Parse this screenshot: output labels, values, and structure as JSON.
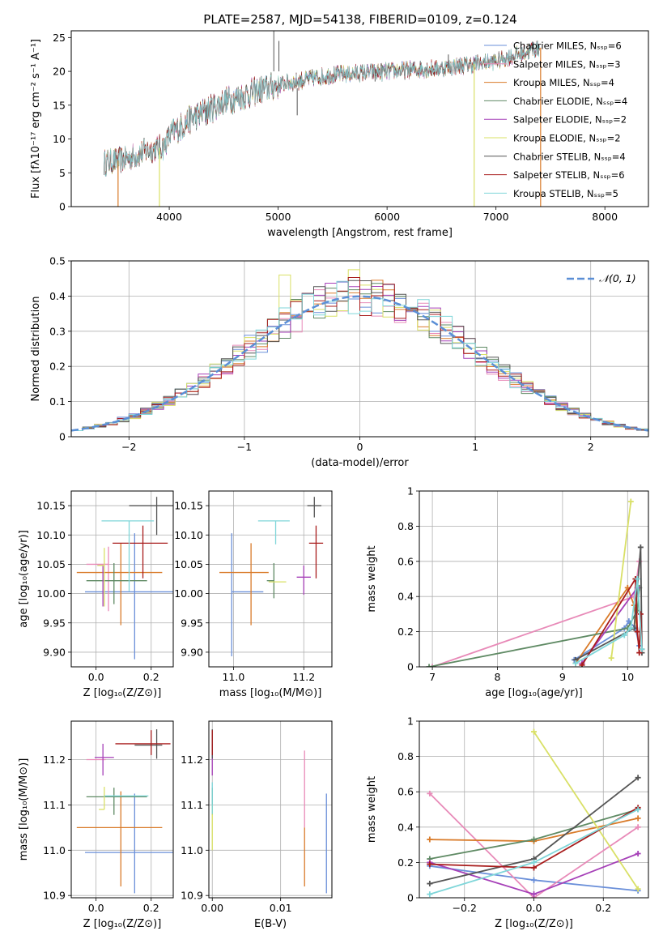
{
  "figure": {
    "title": "PLATE=2587, MJD=54138, FIBERID=0109, z=0.124"
  },
  "colors": {
    "Chabrier MILES": "#6a8fd9",
    "Salpeter MILES": "#e88ab8",
    "Kroupa MILES": "#d97b2a",
    "Chabrier ELODIE": "#5f8a64",
    "Salpeter ELODIE": "#a640b8",
    "Kroupa ELODIE": "#d9e066",
    "Chabrier STELIB": "#555555",
    "Salpeter STELIB": "#a81c1c",
    "Kroupa STELIB": "#7fd6d9"
  },
  "chart_data": [
    {
      "id": "spectrum",
      "type": "line",
      "title": "PLATE=2587, MJD=54138, FIBERID=0109, z=0.124",
      "xlabel": "wavelength [Angstrom, rest frame]",
      "ylabel": "Flux [fλ10⁻¹⁷ erg cm⁻² s⁻¹ A⁻¹]",
      "xlim": [
        3100,
        8400
      ],
      "ylim": [
        0,
        26
      ],
      "xticks": [
        4000,
        5000,
        6000,
        7000,
        8000
      ],
      "yticks": [
        0,
        5,
        10,
        15,
        20,
        25
      ],
      "legend_position": "top-right",
      "legend": [
        "Chabrier MILES, Nₛₛₚ=6",
        "Salpeter MILES, Nₛₛₚ=3",
        "Kroupa MILES, Nₛₛₚ=4",
        "Chabrier ELODIE, Nₛₛₚ=4",
        "Salpeter ELODIE, Nₛₛₚ=2",
        "Kroupa ELODIE, Nₛₛₚ=2",
        "Chabrier STELIB, Nₛₛₚ=4",
        "Salpeter STELIB, Nₛₛₚ=6",
        "Kroupa STELIB, Nₛₛₚ=5"
      ],
      "series_names": [
        "Chabrier MILES",
        "Salpeter MILES",
        "Kroupa MILES",
        "Chabrier ELODIE",
        "Salpeter ELODIE",
        "Kroupa ELODIE",
        "Chabrier STELIB",
        "Salpeter STELIB",
        "Kroupa STELIB"
      ],
      "continuum": {
        "x": [
          3400,
          3600,
          3800,
          3950,
          4000,
          4200,
          4500,
          4800,
          5000,
          5500,
          6000,
          6500,
          7000,
          7400
        ],
        "y": [
          6.5,
          7,
          8.3,
          8.8,
          10.5,
          13,
          15.5,
          17,
          18,
          19.5,
          20,
          20.5,
          21.5,
          23.5
        ]
      },
      "x_range": [
        3400,
        7400
      ],
      "gaps": [
        {
          "x": 3530,
          "series": "Kroupa MILES"
        },
        {
          "x": 3910,
          "series": "Kroupa ELODIE"
        },
        {
          "x": 6800,
          "series": "Kroupa ELODIE"
        },
        {
          "x": 7410,
          "series": "Kroupa MILES"
        }
      ]
    },
    {
      "id": "residuals",
      "type": "histogram",
      "xlabel": "(data-model)/error",
      "ylabel": "Normed distribution",
      "xlim": [
        -2.5,
        2.5
      ],
      "ylim": [
        0,
        0.5
      ],
      "xticks": [
        -2,
        -1,
        0,
        1,
        2
      ],
      "yticks": [
        0.0,
        0.1,
        0.2,
        0.3,
        0.4,
        0.5
      ],
      "grid": true,
      "legend": [
        "𝒩(0, 1)"
      ],
      "legend_position": "top-right",
      "bin_width": 0.1,
      "reference_curve": {
        "name": "𝒩(0, 1)",
        "mean": 0,
        "sigma": 1,
        "color": "#5b8fd6"
      }
    },
    {
      "id": "z-age",
      "type": "errorbar",
      "xlabel": "Z [log₁₀(Z/Z⊙)]",
      "ylabel": "age  [log₁₀(age/yr)]",
      "xlim": [
        -0.09,
        0.28
      ],
      "ylim": [
        9.875,
        10.175
      ],
      "xticks": [
        0.0,
        0.2
      ],
      "xticklabels": [
        "0.0",
        "0.2"
      ],
      "yticks": [
        9.9,
        9.95,
        10.0,
        10.05,
        10.1,
        10.15
      ],
      "yticklabels": [
        "9.90",
        "9.95",
        "10.00",
        "10.05",
        "10.10",
        "10.15"
      ],
      "grid": true,
      "points": [
        {
          "series": "Chabrier MILES",
          "x": 0.14,
          "y": 10.003,
          "xerr": [
            0.18,
            0.16
          ],
          "yerr": [
            0.115,
            0.1
          ]
        },
        {
          "series": "Salpeter MILES",
          "x": 0.045,
          "y": 10.05,
          "xerr": [
            0.08,
            0.0
          ],
          "yerr": [
            0.08,
            0.03
          ]
        },
        {
          "series": "Kroupa MILES",
          "x": 0.09,
          "y": 10.036,
          "xerr": [
            0.16,
            0.15
          ],
          "yerr": [
            0.09,
            0.05
          ]
        },
        {
          "series": "Chabrier ELODIE",
          "x": 0.065,
          "y": 10.022,
          "xerr": [
            0.1,
            0.12
          ],
          "yerr": [
            0.04,
            0.03
          ]
        },
        {
          "series": "Salpeter ELODIE",
          "x": 0.025,
          "y": 10.048,
          "xerr": [
            0.02,
            0.0
          ],
          "yerr": [
            0.07,
            0.0
          ]
        },
        {
          "series": "Kroupa ELODIE",
          "x": 0.03,
          "y": 10.048,
          "xerr": [
            0.025,
            0.0
          ],
          "yerr": [
            0.07,
            0.03
          ]
        },
        {
          "series": "Chabrier STELIB",
          "x": 0.22,
          "y": 10.15,
          "xerr": [
            0.1,
            0.08
          ],
          "yerr": [
            0.05,
            0.015
          ]
        },
        {
          "series": "Salpeter STELIB",
          "x": 0.17,
          "y": 10.086,
          "xerr": [
            0.11,
            0.09
          ],
          "yerr": [
            0.06,
            0.03
          ]
        },
        {
          "series": "Kroupa STELIB",
          "x": 0.12,
          "y": 10.124,
          "xerr": [
            0.1,
            0.09
          ],
          "yerr": [
            0.12,
            0.0
          ]
        }
      ]
    },
    {
      "id": "mass-age",
      "type": "errorbar",
      "xlabel": "mass [log₁₀(M/M⊙)]",
      "ylabel": "",
      "xlim": [
        10.93,
        11.28
      ],
      "ylim": [
        9.875,
        10.175
      ],
      "xticks": [
        11.0,
        11.2
      ],
      "xticklabels": [
        "11.0",
        "11.2"
      ],
      "yticks": [
        9.9,
        9.95,
        10.0,
        10.05,
        10.1,
        10.15
      ],
      "yticklabels": [
        "9.90",
        "9.95",
        "10.00",
        "10.05",
        "10.10",
        "10.15"
      ],
      "grid": true,
      "points": [
        {
          "series": "Chabrier MILES",
          "x": 10.995,
          "y": 10.003,
          "xerr": [
            0.0,
            0.09
          ],
          "yerr": [
            0.11,
            0.1
          ]
        },
        {
          "series": "Salpeter MILES",
          "x": 11.2,
          "y": 10.05,
          "xerr": [
            0.0,
            0.0
          ],
          "yerr": [
            0.0,
            0.0
          ]
        },
        {
          "series": "Kroupa MILES",
          "x": 11.05,
          "y": 10.036,
          "xerr": [
            0.09,
            0.05
          ],
          "yerr": [
            0.09,
            0.05
          ]
        },
        {
          "series": "Chabrier ELODIE",
          "x": 11.115,
          "y": 10.022,
          "xerr": [
            0.02,
            0.0
          ],
          "yerr": [
            0.03,
            0.03
          ]
        },
        {
          "series": "Salpeter ELODIE",
          "x": 11.2,
          "y": 10.028,
          "xerr": [
            0.02,
            0.02
          ],
          "yerr": [
            0.03,
            0.02
          ]
        },
        {
          "series": "Kroupa ELODIE",
          "x": 11.1,
          "y": 10.02,
          "xerr": [
            0.0,
            0.05
          ],
          "yerr": [
            0.0,
            0.0
          ]
        },
        {
          "series": "Chabrier STELIB",
          "x": 11.23,
          "y": 10.15,
          "xerr": [
            0.02,
            0.02
          ],
          "yerr": [
            0.02,
            0.015
          ]
        },
        {
          "series": "Salpeter STELIB",
          "x": 11.235,
          "y": 10.086,
          "xerr": [
            0.02,
            0.02
          ],
          "yerr": [
            0.06,
            0.03
          ]
        },
        {
          "series": "Kroupa STELIB",
          "x": 11.12,
          "y": 10.124,
          "xerr": [
            0.05,
            0.04
          ],
          "yerr": [
            0.04,
            0.0
          ]
        }
      ]
    },
    {
      "id": "age-weight",
      "type": "line",
      "xlabel": "age  [log₁₀(age/yr)]",
      "ylabel": "mass weight",
      "xlim": [
        6.8,
        10.32
      ],
      "ylim": [
        0,
        1.0
      ],
      "xticks": [
        7,
        8,
        9,
        10
      ],
      "yticks": [
        0.0,
        0.2,
        0.4,
        0.6,
        0.8,
        1.0
      ],
      "grid": true,
      "series": [
        {
          "name": "Chabrier MILES",
          "x": [
            9.18,
            9.95,
            10.02,
            10.12,
            10.18
          ],
          "y": [
            0.04,
            0.22,
            0.26,
            0.22,
            0.12
          ]
        },
        {
          "name": "Salpeter MILES",
          "x": [
            7.0,
            10.1,
            10.18
          ],
          "y": [
            0.0,
            0.4,
            0.6
          ]
        },
        {
          "name": "Kroupa MILES",
          "x": [
            9.2,
            10.0,
            10.1,
            10.15
          ],
          "y": [
            0.02,
            0.45,
            0.35,
            0.2
          ]
        },
        {
          "name": "Chabrier ELODIE",
          "x": [
            6.95,
            10.0,
            10.15,
            10.18
          ],
          "y": [
            0.0,
            0.22,
            0.32,
            0.45
          ]
        },
        {
          "name": "Salpeter ELODIE",
          "x": [
            9.3,
            10.15
          ],
          "y": [
            0.02,
            0.45
          ]
        },
        {
          "name": "Kroupa ELODIE",
          "x": [
            9.75,
            10.05
          ],
          "y": [
            0.05,
            0.94
          ]
        },
        {
          "name": "Chabrier STELIB",
          "x": [
            9.2,
            10.1,
            10.2,
            10.22
          ],
          "y": [
            0.04,
            0.22,
            0.68,
            0.08
          ]
        },
        {
          "name": "Salpeter STELIB",
          "x": [
            9.3,
            10.12,
            10.15,
            10.18,
            10.2,
            10.22
          ],
          "y": [
            0.01,
            0.5,
            0.2,
            0.08,
            0.3,
            0.1
          ]
        },
        {
          "name": "Kroupa STELIB",
          "x": [
            9.2,
            9.95,
            10.05,
            10.15,
            10.22
          ],
          "y": [
            0.02,
            0.18,
            0.22,
            0.5,
            0.1
          ]
        }
      ]
    },
    {
      "id": "mass-z",
      "type": "errorbar",
      "xlabel": "Z [log₁₀(Z/Z⊙)]",
      "ylabel": "mass [log₁₀(M/M⊙)]",
      "xlim": [
        -0.09,
        0.28
      ],
      "ylim": [
        10.895,
        11.285
      ],
      "xticks": [
        0.0,
        0.2
      ],
      "xticklabels": [
        "0.0",
        "0.2"
      ],
      "yticks": [
        10.9,
        11.0,
        11.1,
        11.2
      ],
      "yticklabels": [
        "10.9",
        "11.0",
        "11.1",
        "11.2"
      ],
      "grid": true,
      "points": [
        {
          "series": "Chabrier MILES",
          "x": 0.14,
          "y": 10.995,
          "xerr": [
            0.18,
            0.16
          ],
          "yerr": [
            0.09,
            0.13
          ]
        },
        {
          "series": "Salpeter MILES",
          "x": 0.035,
          "y": 11.2,
          "xerr": [
            0.07,
            0.0
          ],
          "yerr": [
            0.0,
            0.0
          ]
        },
        {
          "series": "Kroupa MILES",
          "x": 0.09,
          "y": 11.05,
          "xerr": [
            0.16,
            0.15
          ],
          "yerr": [
            0.13,
            0.08
          ]
        },
        {
          "series": "Chabrier ELODIE",
          "x": 0.065,
          "y": 11.118,
          "xerr": [
            0.1,
            0.12
          ],
          "yerr": [
            0.04,
            0.02
          ]
        },
        {
          "series": "Salpeter ELODIE",
          "x": 0.025,
          "y": 11.205,
          "xerr": [
            0.03,
            0.04
          ],
          "yerr": [
            0.04,
            0.03
          ]
        },
        {
          "series": "Kroupa ELODIE",
          "x": 0.03,
          "y": 11.09,
          "xerr": [
            0.02,
            0.0
          ],
          "yerr": [
            0.0,
            0.05
          ]
        },
        {
          "series": "Chabrier STELIB",
          "x": 0.22,
          "y": 11.232,
          "xerr": [
            0.08,
            0.02
          ],
          "yerr": [
            0.03,
            0.035
          ]
        },
        {
          "series": "Salpeter STELIB",
          "x": 0.2,
          "y": 11.235,
          "xerr": [
            0.13,
            0.07
          ],
          "yerr": [
            0.025,
            0.03
          ]
        },
        {
          "series": "Kroupa STELIB",
          "x": 0.1,
          "y": 11.12,
          "xerr": [
            0.07,
            0.09
          ],
          "yerr": [
            0.0,
            0.0
          ]
        }
      ]
    },
    {
      "id": "ebv-mass",
      "type": "errorbar",
      "xlabel": "E(B-V)",
      "ylabel": "",
      "xlim": [
        -0.0005,
        0.0175
      ],
      "ylim": [
        10.895,
        11.285
      ],
      "xticks": [
        0.0,
        0.01
      ],
      "xticklabels": [
        "0.00",
        "0.01"
      ],
      "yticks": [
        10.9,
        11.0,
        11.1,
        11.2
      ],
      "yticklabels": [
        "10.9",
        "11.0",
        "11.1",
        "11.2"
      ],
      "grid": true,
      "points": [
        {
          "series": "Chabrier MILES",
          "x": 0.0167,
          "y": 10.995,
          "xerr": [
            0,
            0
          ],
          "yerr": [
            0.09,
            0.13
          ]
        },
        {
          "series": "Salpeter MILES",
          "x": 0.0135,
          "y": 11.1,
          "xerr": [
            0,
            0
          ],
          "yerr": [
            0.05,
            0.12
          ]
        },
        {
          "series": "Kroupa MILES",
          "x": 0.0135,
          "y": 11.0,
          "xerr": [
            0,
            0
          ],
          "yerr": [
            0.08,
            0.05
          ]
        },
        {
          "series": "Chabrier ELODIE",
          "x": 0.0,
          "y": 11.118,
          "xerr": [
            0,
            0
          ],
          "yerr": [
            0.04,
            0.02
          ]
        },
        {
          "series": "Salpeter ELODIE",
          "x": 0.0,
          "y": 11.205,
          "xerr": [
            0,
            0
          ],
          "yerr": [
            0.04,
            0.03
          ]
        },
        {
          "series": "Kroupa ELODIE",
          "x": 0.0,
          "y": 11.05,
          "xerr": [
            0,
            0
          ],
          "yerr": [
            0.05,
            0.05
          ]
        },
        {
          "series": "Chabrier STELIB",
          "x": 0.0,
          "y": 11.232,
          "xerr": [
            0,
            0
          ],
          "yerr": [
            0.03,
            0.035
          ]
        },
        {
          "series": "Salpeter STELIB",
          "x": 0.0,
          "y": 11.235,
          "xerr": [
            0,
            0
          ],
          "yerr": [
            0.025,
            0.03
          ]
        },
        {
          "series": "Kroupa STELIB",
          "x": 0.0,
          "y": 11.12,
          "xerr": [
            0,
            0
          ],
          "yerr": [
            0.04,
            0.03
          ]
        }
      ]
    },
    {
      "id": "z-weight",
      "type": "line",
      "xlabel": "Z [log₁₀(Z/Z⊙)]",
      "ylabel": "mass weight",
      "xlim": [
        -0.33,
        0.33
      ],
      "ylim": [
        0,
        1.0
      ],
      "xticks": [
        -0.2,
        0.0,
        0.2
      ],
      "xticklabels": [
        "−0.2",
        "0.0",
        "0.2"
      ],
      "yticks": [
        0.0,
        0.2,
        0.4,
        0.6,
        0.8,
        1.0
      ],
      "grid": true,
      "series": [
        {
          "name": "Chabrier MILES",
          "x": [
            -0.3,
            0.0,
            0.3
          ],
          "y": [
            0.18,
            0.1,
            0.04
          ]
        },
        {
          "name": "Salpeter MILES",
          "x": [
            -0.3,
            0.0,
            0.3
          ],
          "y": [
            0.59,
            0.0,
            0.4
          ]
        },
        {
          "name": "Kroupa MILES",
          "x": [
            -0.3,
            0.0,
            0.3
          ],
          "y": [
            0.33,
            0.32,
            0.45
          ]
        },
        {
          "name": "Chabrier ELODIE",
          "x": [
            -0.3,
            0.0,
            0.3
          ],
          "y": [
            0.22,
            0.33,
            0.5
          ]
        },
        {
          "name": "Salpeter ELODIE",
          "x": [
            -0.3,
            0.0,
            0.3
          ],
          "y": [
            0.2,
            0.02,
            0.25
          ]
        },
        {
          "name": "Kroupa ELODIE",
          "x": [
            0.0,
            0.3
          ],
          "y": [
            0.94,
            0.05
          ]
        },
        {
          "name": "Chabrier STELIB",
          "x": [
            -0.3,
            0.0,
            0.3
          ],
          "y": [
            0.08,
            0.22,
            0.68
          ]
        },
        {
          "name": "Salpeter STELIB",
          "x": [
            -0.3,
            0.0,
            0.3
          ],
          "y": [
            0.19,
            0.17,
            0.51
          ]
        },
        {
          "name": "Kroupa STELIB",
          "x": [
            -0.3,
            0.0,
            0.3
          ],
          "y": [
            0.02,
            0.2,
            0.5
          ]
        }
      ]
    }
  ]
}
